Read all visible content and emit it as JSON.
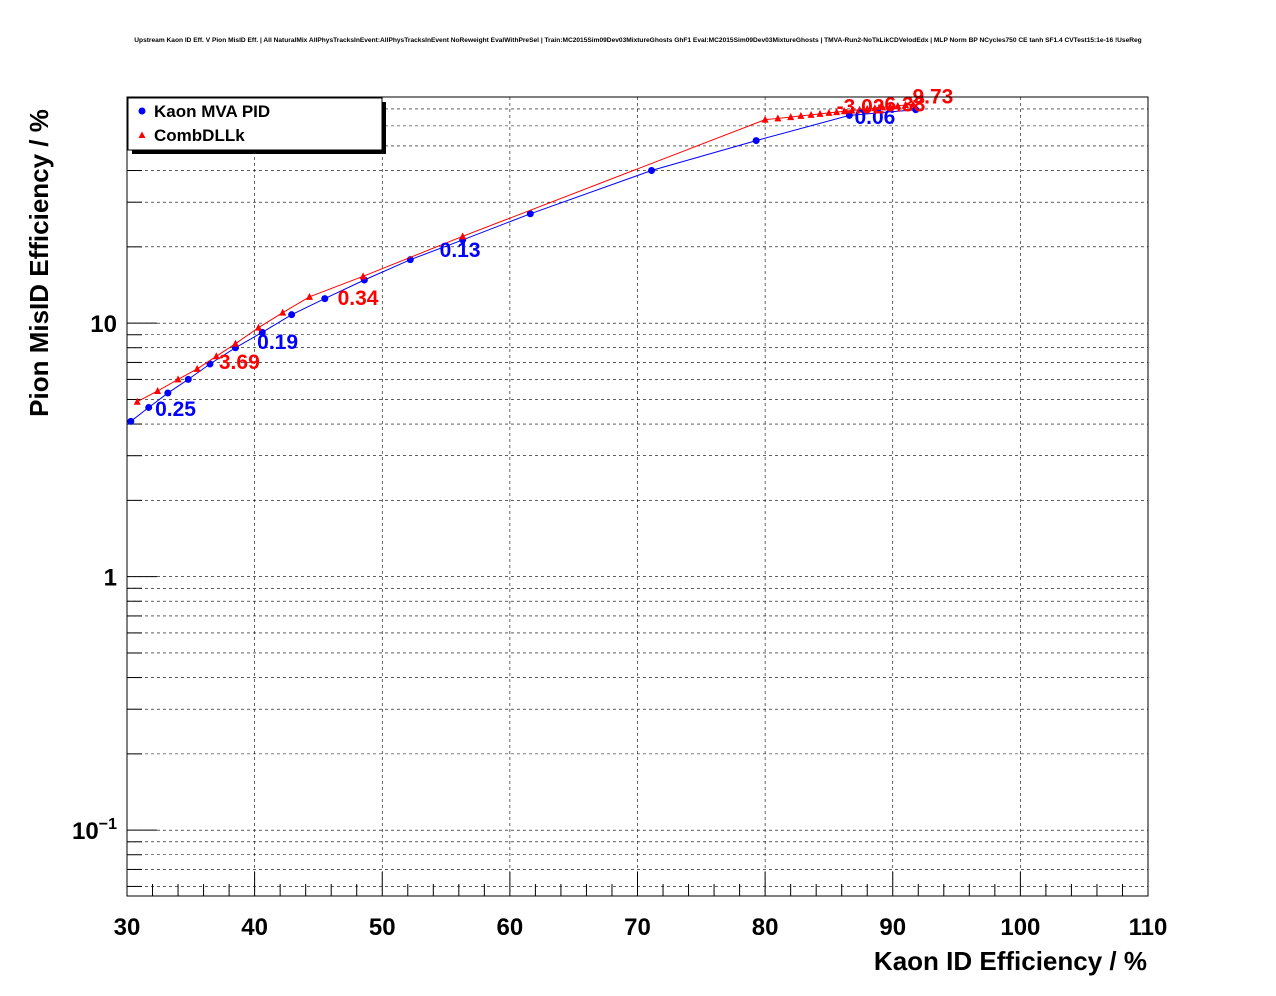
{
  "chart_data": {
    "type": "scatter",
    "title": "Upstream Kaon ID Eff. V Pion MisID Eff. | All NaturalMix AllPhysTracksInEvent:AllPhysTracksInEvent NoReweight EvalWithPreSel | Train:MC2015Sim09Dev03MixtureGhosts GhF1 Eval:MC2015Sim09Dev03MixtureGhosts | TMVA-Run2-NoTkLikCDVelodEdx | MLP Norm BP NCycles750 CE tanh SF1.4 CVTest15:1e-16 !UseReg",
    "xlabel": "Kaon ID Efficiency / %",
    "ylabel": "Pion MisID Efficiency / %",
    "xlim": [
      30,
      110
    ],
    "ylim": [
      0.055,
      78
    ],
    "yscale": "log",
    "grid": true,
    "legend_position": "top-left",
    "x_ticks": [
      "30",
      "40",
      "50",
      "60",
      "70",
      "80",
      "90",
      "100",
      "110"
    ],
    "x_tick_values": [
      30,
      40,
      50,
      60,
      70,
      80,
      90,
      100,
      110
    ],
    "y_ticks": [
      {
        "value": 0.1,
        "base": "10",
        "exp": "−1"
      },
      {
        "value": 1,
        "base": "1",
        "exp": ""
      },
      {
        "value": 10,
        "base": "10",
        "exp": ""
      }
    ],
    "series": [
      {
        "name": "Kaon MVA PID",
        "color": "#0000ff",
        "marker": "circle",
        "x": [
          30.3,
          31.7,
          33.2,
          34.8,
          36.5,
          38.5,
          40.6,
          42.9,
          45.5,
          48.6,
          52.2,
          56.3,
          61.6,
          71.1,
          79.3,
          86.6,
          91.8
        ],
        "y": [
          4.1,
          4.65,
          5.3,
          6.0,
          6.9,
          8.0,
          9.2,
          10.8,
          12.5,
          14.8,
          17.8,
          21.3,
          27.0,
          40.0,
          52.5,
          66.0,
          69.5
        ],
        "annotations": [
          {
            "text": "0.25",
            "x": 32.2,
            "y": 4.3
          },
          {
            "text": "0.19",
            "x": 40.2,
            "y": 7.9
          },
          {
            "text": "0.13",
            "x": 54.5,
            "y": 18.2
          },
          {
            "text": "0.06",
            "x": 87.0,
            "y": 61.0
          }
        ]
      },
      {
        "name": "CombDLLk",
        "color": "#ff0000",
        "marker": "triangle",
        "x": [
          30.8,
          32.4,
          34.0,
          35.5,
          37.0,
          38.5,
          40.3,
          42.2,
          44.3,
          48.5,
          56.3,
          80.0,
          81.0,
          82.0,
          82.8,
          83.6,
          84.3,
          85.0,
          85.6,
          86.2,
          86.8,
          87.4,
          88.0,
          88.6,
          89.2,
          89.8,
          90.4,
          91.0,
          91.6
        ],
        "y": [
          4.9,
          5.4,
          6.0,
          6.6,
          7.4,
          8.3,
          9.6,
          11.0,
          12.7,
          15.3,
          22.0,
          63.5,
          64.2,
          65.0,
          65.7,
          66.3,
          66.9,
          67.5,
          68.0,
          68.5,
          69.0,
          69.5,
          70.0,
          70.5,
          71.0,
          71.5,
          72.0,
          72.5,
          73.0
        ],
        "annotations": [
          {
            "text": "3.69",
            "x": 37.2,
            "y": 6.6
          },
          {
            "text": "0.34",
            "x": 46.5,
            "y": 11.8
          },
          {
            "text": "-3.02",
            "x": 85.6,
            "y": 67.0
          },
          {
            "text": "-6.38",
            "x": 88.8,
            "y": 68.5
          },
          {
            "text": "-9.73",
            "x": 91.0,
            "y": 73.5
          }
        ]
      }
    ]
  }
}
